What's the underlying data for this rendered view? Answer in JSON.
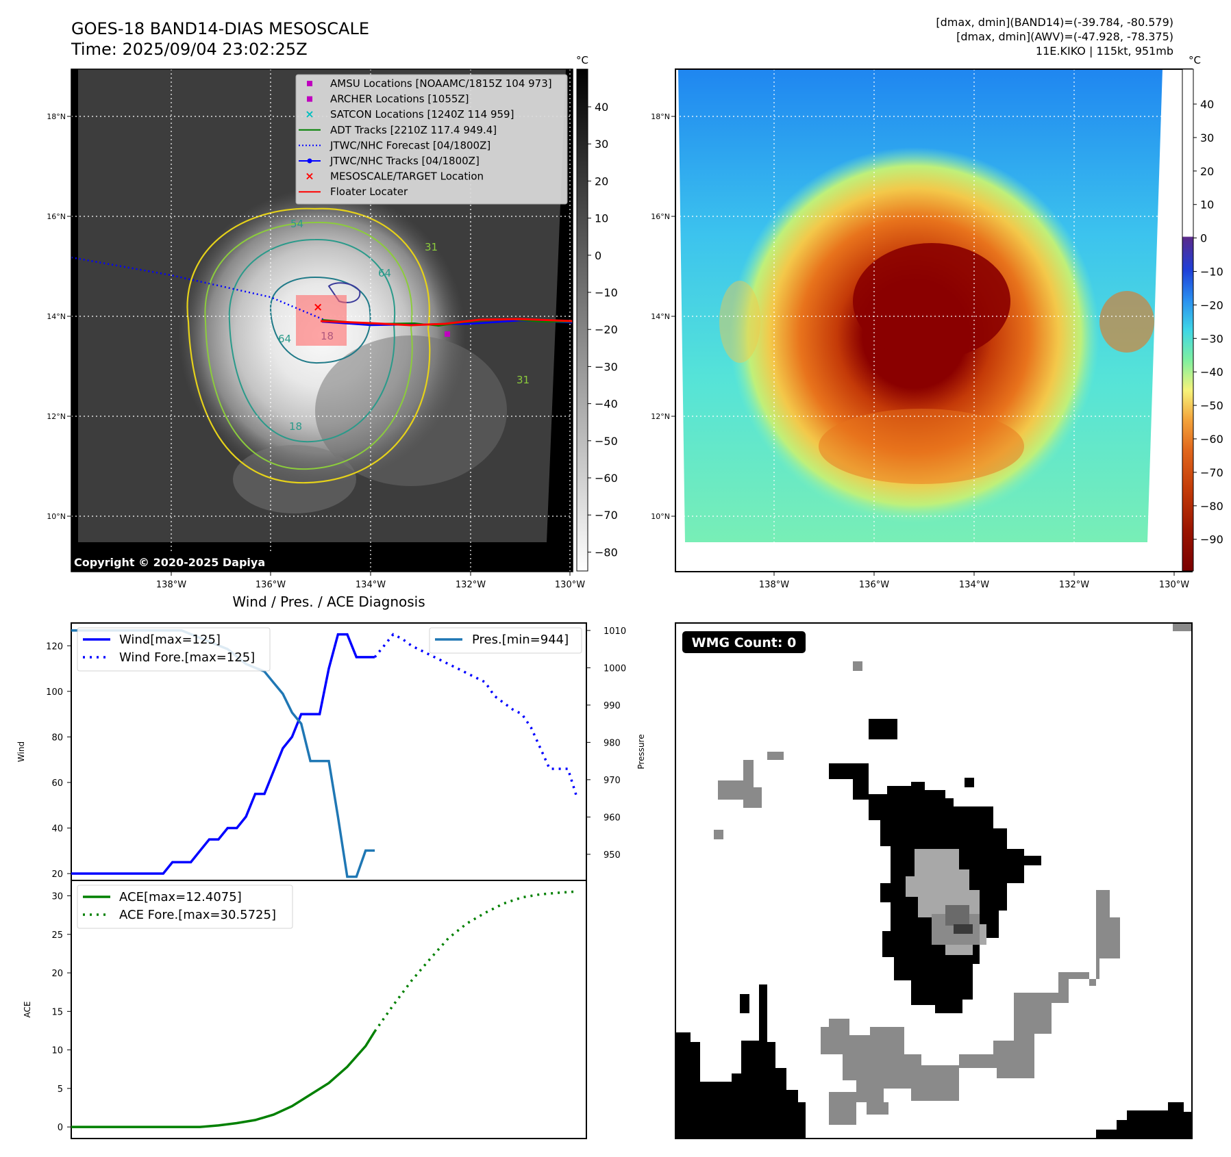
{
  "header": {
    "title_line1": "GOES-18 BAND14-DIAS MESOSCALE",
    "title_line2": "Time: 2025/09/04 23:02:25Z",
    "info_line1": "[dmax, dmin](BAND14)=(-39.784, -80.579)",
    "info_line2": "[dmax, dmin](AWV)=(-47.928, -78.375)",
    "info_line3": "11E.KIKO | 115kt, 951mb"
  },
  "satellite_panels": {
    "lon_ticks": [
      "138°W",
      "136°W",
      "134°W",
      "132°W",
      "130°W"
    ],
    "lat_ticks": [
      "18°N",
      "16°N",
      "14°N",
      "12°N",
      "10°N"
    ],
    "left_colorbar": {
      "unit": "°C",
      "ticks": [
        "40",
        "30",
        "20",
        "10",
        "0",
        "−10",
        "−20",
        "−30",
        "−40",
        "−50",
        "−60",
        "−70",
        "−80"
      ]
    },
    "right_colorbar": {
      "unit": "°C",
      "ticks": [
        "40",
        "30",
        "20",
        "10",
        "0",
        "−10",
        "−20",
        "−30",
        "−40",
        "−50",
        "−60",
        "−70",
        "−80",
        "−90"
      ]
    },
    "copyright": "Copyright © 2020-2025 Dapiya",
    "contour_labels": [
      "54",
      "64",
      "31",
      "31",
      "64",
      "18",
      "18"
    ],
    "legend": [
      {
        "label": "AMSU Locations [NOAAMC/1815Z 104 973]",
        "marker": "square",
        "color": "#bf00bf"
      },
      {
        "label": "ARCHER Locations [1055Z]",
        "marker": "square",
        "color": "#bf00bf"
      },
      {
        "label": "SATCON Locations [1240Z 114 959]",
        "marker": "x",
        "color": "#00bfbf"
      },
      {
        "label": "ADT Tracks [2210Z 117.4 949.4]",
        "marker": "line",
        "color": "#008000"
      },
      {
        "label": "JTWC/NHC Forecast [04/1800Z]",
        "marker": "dotted",
        "color": "#0000ff"
      },
      {
        "label": "JTWC/NHC Tracks [04/1800Z]",
        "marker": "line-dot",
        "color": "#0000ff"
      },
      {
        "label": "MESOSCALE/TARGET Location",
        "marker": "x",
        "color": "#ff0000"
      },
      {
        "label": "Floater Locater",
        "marker": "line",
        "color": "#ff0000"
      }
    ]
  },
  "diagnosis": {
    "title": "Wind / Pres. / ACE Diagnosis",
    "wmg_label": "WMG Count: 0"
  },
  "chart_data": [
    {
      "type": "line",
      "title": "Wind / Pres. / ACE Diagnosis",
      "ylabel": "Wind",
      "ylabel_right": "Pressure",
      "ylim": [
        17,
        130
      ],
      "ylim_right": [
        943,
        1012
      ],
      "yticks": [
        20,
        40,
        60,
        80,
        100,
        120
      ],
      "yticks_right": [
        950,
        960,
        970,
        980,
        990,
        1000,
        1010
      ],
      "xlim": [
        0,
        56
      ],
      "series": [
        {
          "name": "Wind[max=125]",
          "axis": "left",
          "style": "solid",
          "color": "#0000ff",
          "x": [
            0,
            1,
            2,
            3,
            4,
            5,
            6,
            7,
            8,
            9,
            10,
            11,
            12,
            13,
            14,
            15,
            16,
            17,
            18,
            19,
            20,
            21,
            22,
            23,
            24,
            25,
            26,
            27,
            28,
            29,
            30,
            31,
            32,
            33
          ],
          "values": [
            20,
            20,
            20,
            20,
            20,
            20,
            20,
            20,
            20,
            20,
            20,
            25,
            25,
            25,
            30,
            35,
            35,
            40,
            40,
            45,
            55,
            55,
            65,
            75,
            80,
            90,
            90,
            90,
            110,
            125,
            125,
            115,
            115,
            115
          ]
        },
        {
          "name": "Wind Fore.[max=125]",
          "axis": "left",
          "style": "dotted",
          "color": "#0000ff",
          "x": [
            33,
            34,
            35,
            36,
            37,
            38,
            39,
            40,
            41,
            42,
            43,
            44,
            45,
            46,
            47,
            48,
            49,
            50,
            51,
            52,
            53,
            54,
            55
          ],
          "values": [
            115,
            120,
            125,
            123,
            120,
            118,
            116,
            114,
            112,
            110,
            108,
            106,
            104,
            98,
            95,
            92,
            90,
            84,
            75,
            66,
            66,
            66,
            53
          ]
        },
        {
          "name": "Pres.[min=944]",
          "axis": "right",
          "style": "solid",
          "color": "#1f77b4",
          "x": [
            0,
            1,
            2,
            3,
            4,
            5,
            6,
            7,
            8,
            9,
            10,
            11,
            12,
            13,
            14,
            15,
            16,
            17,
            18,
            19,
            20,
            21,
            22,
            23,
            24,
            25,
            26,
            27,
            28,
            29,
            30,
            31,
            32,
            33
          ],
          "values": [
            1010,
            1010,
            1010,
            1010,
            1010,
            1010,
            1010,
            1010,
            1010,
            1010,
            1010,
            1010,
            1010,
            1009,
            1008,
            1007,
            1006,
            1005,
            1003,
            1001,
            1000,
            999,
            996,
            993,
            988,
            985,
            975,
            975,
            975,
            960,
            944,
            944,
            951,
            951
          ]
        }
      ]
    },
    {
      "type": "line",
      "ylabel": "ACE",
      "ylim": [
        -1.5,
        32
      ],
      "yticks": [
        0,
        5,
        10,
        15,
        20,
        25,
        30
      ],
      "xlim": [
        0,
        56
      ],
      "series": [
        {
          "name": "ACE[max=12.4075]",
          "style": "solid",
          "color": "#008000",
          "x": [
            0,
            2,
            4,
            6,
            8,
            10,
            12,
            14,
            16,
            18,
            20,
            22,
            24,
            26,
            28,
            30,
            32,
            33
          ],
          "values": [
            0,
            0,
            0,
            0,
            0,
            0,
            0,
            0,
            0.2,
            0.5,
            0.9,
            1.6,
            2.7,
            4.2,
            5.7,
            7.8,
            10.5,
            12.4075
          ]
        },
        {
          "name": "ACE Fore.[max=30.5725]",
          "style": "dotted",
          "color": "#008000",
          "x": [
            33,
            35,
            37,
            39,
            41,
            43,
            45,
            47,
            49,
            51,
            53,
            55
          ],
          "values": [
            12.4075,
            15.8,
            19.0,
            21.8,
            24.5,
            26.4,
            27.8,
            29.0,
            29.8,
            30.2,
            30.4,
            30.5725
          ]
        }
      ]
    }
  ]
}
